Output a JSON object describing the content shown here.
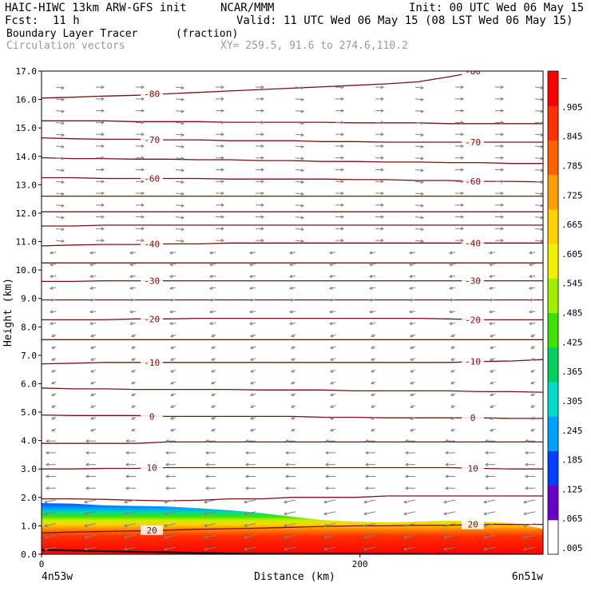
{
  "header": {
    "model_title": "HAIC-HIWC 13km ARW-GFS init",
    "org": "NCAR/MMM",
    "init_label": "Init: 00 UTC Wed 06 May 15",
    "fcst_label": "Fcst:",
    "fcst_value": "11 h",
    "valid_label": "Valid: 11 UTC Wed 06 May 15 (08 LST Wed 06 May 15)",
    "field_name": "Boundary Layer Tracer",
    "field_units": "(fraction)",
    "vector_label": "Circulation vectors",
    "xy_label": "XY= 259.5, 91.6 to 274.6,110.2"
  },
  "colors": {
    "contour": "#7a1010",
    "vector": "#808080",
    "tracer_scale": [
      "#ffffff",
      "#6a00c8",
      "#0040ff",
      "#00a0ff",
      "#00dcc8",
      "#00d060",
      "#40e000",
      "#a0f000",
      "#f0f000",
      "#ffd000",
      "#ffa000",
      "#ff6000",
      "#ff3000",
      "#ff0000"
    ]
  },
  "chart_data": {
    "type": "cross-section",
    "xlabel": "Distance (km)",
    "ylabel": "Height (km)",
    "xlim": [
      0,
      315
    ],
    "ylim": [
      0,
      17
    ],
    "x_ticks": [
      0,
      200
    ],
    "y_ticks": [
      "0.0",
      "1.0",
      "2.0",
      "3.0",
      "4.0",
      "5.0",
      "6.0",
      "7.0",
      "8.0",
      "9.0",
      "10.0",
      "11.0",
      "12.0",
      "13.0",
      "14.0",
      "15.0",
      "16.0",
      "17.0"
    ],
    "left_end_label": "4n53w",
    "right_end_label": "6n51w",
    "colorbar_labels": [
      ".005",
      ".065",
      ".125",
      ".185",
      ".245",
      ".305",
      ".365",
      ".425",
      ".485",
      ".545",
      ".605",
      ".665",
      ".725",
      ".785",
      ".845",
      ".905",
      "–"
    ],
    "temperature_contours": [
      {
        "label": "20",
        "y": [
          0.75,
          0.78,
          0.8,
          0.82,
          0.85,
          0.88,
          0.9,
          0.92,
          0.95,
          0.98,
          1.0,
          1.0,
          1.02,
          1.02,
          1.05,
          1.05,
          1.05
        ]
      },
      {
        "label": "",
        "y": [
          1.95,
          1.95,
          1.93,
          1.9,
          1.88,
          1.9,
          1.95,
          1.95,
          2.0,
          2.0,
          2.0,
          2.05,
          2.05,
          2.05,
          2.05,
          2.05,
          2.05
        ]
      },
      {
        "label": "10",
        "y": [
          3.0,
          3.0,
          3.02,
          3.02,
          3.05,
          3.05,
          3.05,
          3.05,
          3.05,
          3.05,
          3.05,
          3.05,
          3.05,
          3.05,
          3.02,
          3.0,
          3.0
        ]
      },
      {
        "label": "",
        "y": [
          3.9,
          3.9,
          3.9,
          3.9,
          3.95,
          3.95,
          3.95,
          3.95,
          3.95,
          3.95,
          3.95,
          3.95,
          3.95,
          3.95,
          3.95,
          3.95,
          3.95
        ]
      },
      {
        "label": "0",
        "y": [
          4.9,
          4.88,
          4.88,
          4.88,
          4.85,
          4.85,
          4.85,
          4.85,
          4.85,
          4.82,
          4.82,
          4.8,
          4.8,
          4.8,
          4.8,
          4.78,
          4.78
        ]
      },
      {
        "label": "",
        "y": [
          5.85,
          5.82,
          5.82,
          5.8,
          5.8,
          5.8,
          5.8,
          5.78,
          5.78,
          5.78,
          5.75,
          5.75,
          5.75,
          5.75,
          5.72,
          5.72,
          5.7
        ]
      },
      {
        "label": "-10",
        "y": [
          6.7,
          6.72,
          6.75,
          6.75,
          6.75,
          6.75,
          6.75,
          6.75,
          6.75,
          6.75,
          6.75,
          6.75,
          6.75,
          6.75,
          6.78,
          6.8,
          6.85
        ]
      },
      {
        "label": "",
        "y": [
          7.55,
          7.55,
          7.55,
          7.55,
          7.55,
          7.55,
          7.55,
          7.55,
          7.55,
          7.55,
          7.55,
          7.55,
          7.55,
          7.55,
          7.55,
          7.55,
          7.55
        ]
      },
      {
        "label": "-20",
        "y": [
          8.25,
          8.25,
          8.25,
          8.28,
          8.28,
          8.3,
          8.3,
          8.3,
          8.3,
          8.3,
          8.3,
          8.3,
          8.3,
          8.28,
          8.25,
          8.25,
          8.25
        ]
      },
      {
        "label": "",
        "y": [
          8.95,
          8.95,
          8.95,
          8.95,
          8.95,
          8.95,
          8.95,
          8.95,
          8.95,
          8.95,
          8.95,
          8.95,
          8.95,
          8.95,
          8.95,
          8.95,
          8.95
        ]
      },
      {
        "label": "-30",
        "y": [
          9.6,
          9.6,
          9.62,
          9.62,
          9.62,
          9.62,
          9.62,
          9.62,
          9.62,
          9.62,
          9.62,
          9.62,
          9.62,
          9.62,
          9.62,
          9.62,
          9.62
        ]
      },
      {
        "label": "",
        "y": [
          10.25,
          10.25,
          10.25,
          10.25,
          10.25,
          10.25,
          10.25,
          10.25,
          10.25,
          10.25,
          10.25,
          10.25,
          10.25,
          10.25,
          10.25,
          10.25,
          10.25
        ]
      },
      {
        "label": "-40",
        "y": [
          10.85,
          10.88,
          10.9,
          10.9,
          10.92,
          10.92,
          10.95,
          10.95,
          10.95,
          10.95,
          10.95,
          10.95,
          10.95,
          10.95,
          10.95,
          10.95,
          10.95
        ]
      },
      {
        "label": "",
        "y": [
          11.55,
          11.55,
          11.58,
          11.58,
          11.58,
          11.58,
          11.58,
          11.58,
          11.58,
          11.58,
          11.58,
          11.58,
          11.58,
          11.58,
          11.58,
          11.58,
          11.58
        ]
      },
      {
        "label": "",
        "y": [
          12.05,
          12.05,
          12.05,
          12.05,
          12.05,
          12.05,
          12.05,
          12.05,
          12.05,
          12.05,
          12.05,
          12.05,
          12.05,
          12.05,
          12.05,
          12.05,
          12.05
        ]
      },
      {
        "label": "",
        "y": [
          12.6,
          12.6,
          12.6,
          12.6,
          12.6,
          12.6,
          12.6,
          12.6,
          12.6,
          12.6,
          12.6,
          12.6,
          12.6,
          12.6,
          12.6,
          12.6,
          12.6
        ]
      },
      {
        "label": "-60",
        "y": [
          13.25,
          13.25,
          13.22,
          13.22,
          13.22,
          13.22,
          13.2,
          13.2,
          13.2,
          13.2,
          13.18,
          13.18,
          13.15,
          13.15,
          13.12,
          13.12,
          13.1
        ]
      },
      {
        "label": "",
        "y": [
          13.95,
          13.92,
          13.92,
          13.9,
          13.9,
          13.88,
          13.88,
          13.85,
          13.85,
          13.82,
          13.82,
          13.8,
          13.8,
          13.78,
          13.78,
          13.75,
          13.75
        ]
      },
      {
        "label": "-70",
        "y": [
          14.65,
          14.62,
          14.6,
          14.6,
          14.58,
          14.58,
          14.55,
          14.55,
          14.55,
          14.52,
          14.52,
          14.5,
          14.5,
          14.5,
          14.5,
          14.5,
          14.5
        ]
      },
      {
        "label": "",
        "y": [
          15.25,
          15.25,
          15.25,
          15.22,
          15.22,
          15.22,
          15.2,
          15.2,
          15.2,
          15.2,
          15.18,
          15.18,
          15.18,
          15.15,
          15.15,
          15.15,
          15.15
        ]
      },
      {
        "label": "-80",
        "y": [
          16.05,
          16.08,
          16.12,
          16.15,
          16.2,
          16.25,
          16.3,
          16.35,
          16.4,
          16.45,
          16.5,
          16.55,
          16.62,
          16.8,
          17.0,
          17.2,
          17.4
        ]
      }
    ]
  }
}
